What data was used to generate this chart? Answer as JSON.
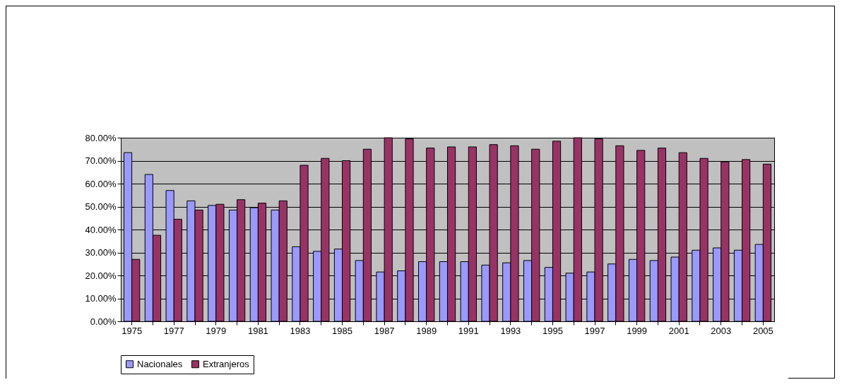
{
  "chart_data": {
    "type": "bar",
    "categories": [
      "1975",
      null,
      "1977",
      null,
      "1979",
      null,
      "1981",
      null,
      "1983",
      null,
      "1985",
      null,
      "1987",
      null,
      "1989",
      null,
      "1991",
      null,
      "1993",
      null,
      "1995",
      null,
      "1997",
      null,
      "1999",
      null,
      "2001",
      null,
      "2003",
      null,
      "2005"
    ],
    "series": [
      {
        "name": "Nacionales",
        "color": "#9999ff",
        "values": [
          73.5,
          64,
          57,
          52.5,
          50.5,
          48.5,
          49.5,
          48.5,
          32.5,
          30.5,
          31.5,
          26.5,
          21.5,
          22,
          26,
          26,
          26,
          24.5,
          25.5,
          26.5,
          23.5,
          21,
          21.5,
          25,
          27,
          26.5,
          28,
          31,
          32,
          31,
          33.5
        ]
      },
      {
        "name": "Extranjeros",
        "color": "#993366",
        "values": [
          27,
          37.5,
          44.5,
          48.5,
          51,
          53,
          51.5,
          52.5,
          68,
          71,
          70,
          75,
          80,
          79.5,
          75.5,
          76,
          76,
          77,
          76.5,
          75,
          78.5,
          80,
          79.5,
          76.5,
          74.5,
          75.5,
          73.5,
          71,
          69.5,
          70.5,
          68.5
        ]
      }
    ],
    "ylim": [
      0,
      80
    ],
    "yticks": [
      {
        "value": 0,
        "label": "0.00%"
      },
      {
        "value": 10,
        "label": "10.00%"
      },
      {
        "value": 20,
        "label": "20.00%"
      },
      {
        "value": 30,
        "label": "30.00%"
      },
      {
        "value": 40,
        "label": "40.00%"
      },
      {
        "value": 50,
        "label": "50.00%"
      },
      {
        "value": 60,
        "label": "60.00%"
      },
      {
        "value": 70,
        "label": "70.00%"
      },
      {
        "value": 80,
        "label": "80.00%"
      }
    ],
    "grid": "y",
    "legend": "bottom"
  }
}
